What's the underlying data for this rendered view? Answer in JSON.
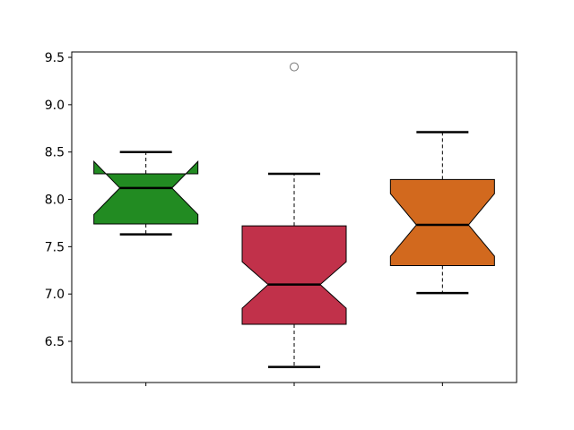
{
  "chart_data": {
    "type": "boxplot",
    "notched": true,
    "title": "",
    "xlabel": "",
    "ylabel": "",
    "ylim": [
      6.065,
      9.557
    ],
    "yticks": [
      "6.5",
      "7.0",
      "7.5",
      "8.0",
      "8.5",
      "9.0",
      "9.5"
    ],
    "xtick_labels": [
      "",
      "",
      ""
    ],
    "grid": false,
    "boxes": [
      {
        "color": "#228B22",
        "whisker_low": 7.63,
        "q1": 7.74,
        "median": 8.12,
        "q3": 8.27,
        "whisker_high": 8.5,
        "notch_low": 7.84,
        "notch_high": 8.4,
        "outliers": []
      },
      {
        "color": "#C1314A",
        "whisker_low": 6.23,
        "q1": 6.68,
        "median": 7.1,
        "q3": 7.72,
        "whisker_high": 8.27,
        "notch_low": 6.85,
        "notch_high": 7.34,
        "outliers": [
          9.4
        ]
      },
      {
        "color": "#D2691E",
        "whisker_low": 7.01,
        "q1": 7.3,
        "median": 7.73,
        "q3": 8.21,
        "whisker_high": 8.71,
        "notch_low": 7.4,
        "notch_high": 8.06,
        "outliers": []
      }
    ]
  }
}
